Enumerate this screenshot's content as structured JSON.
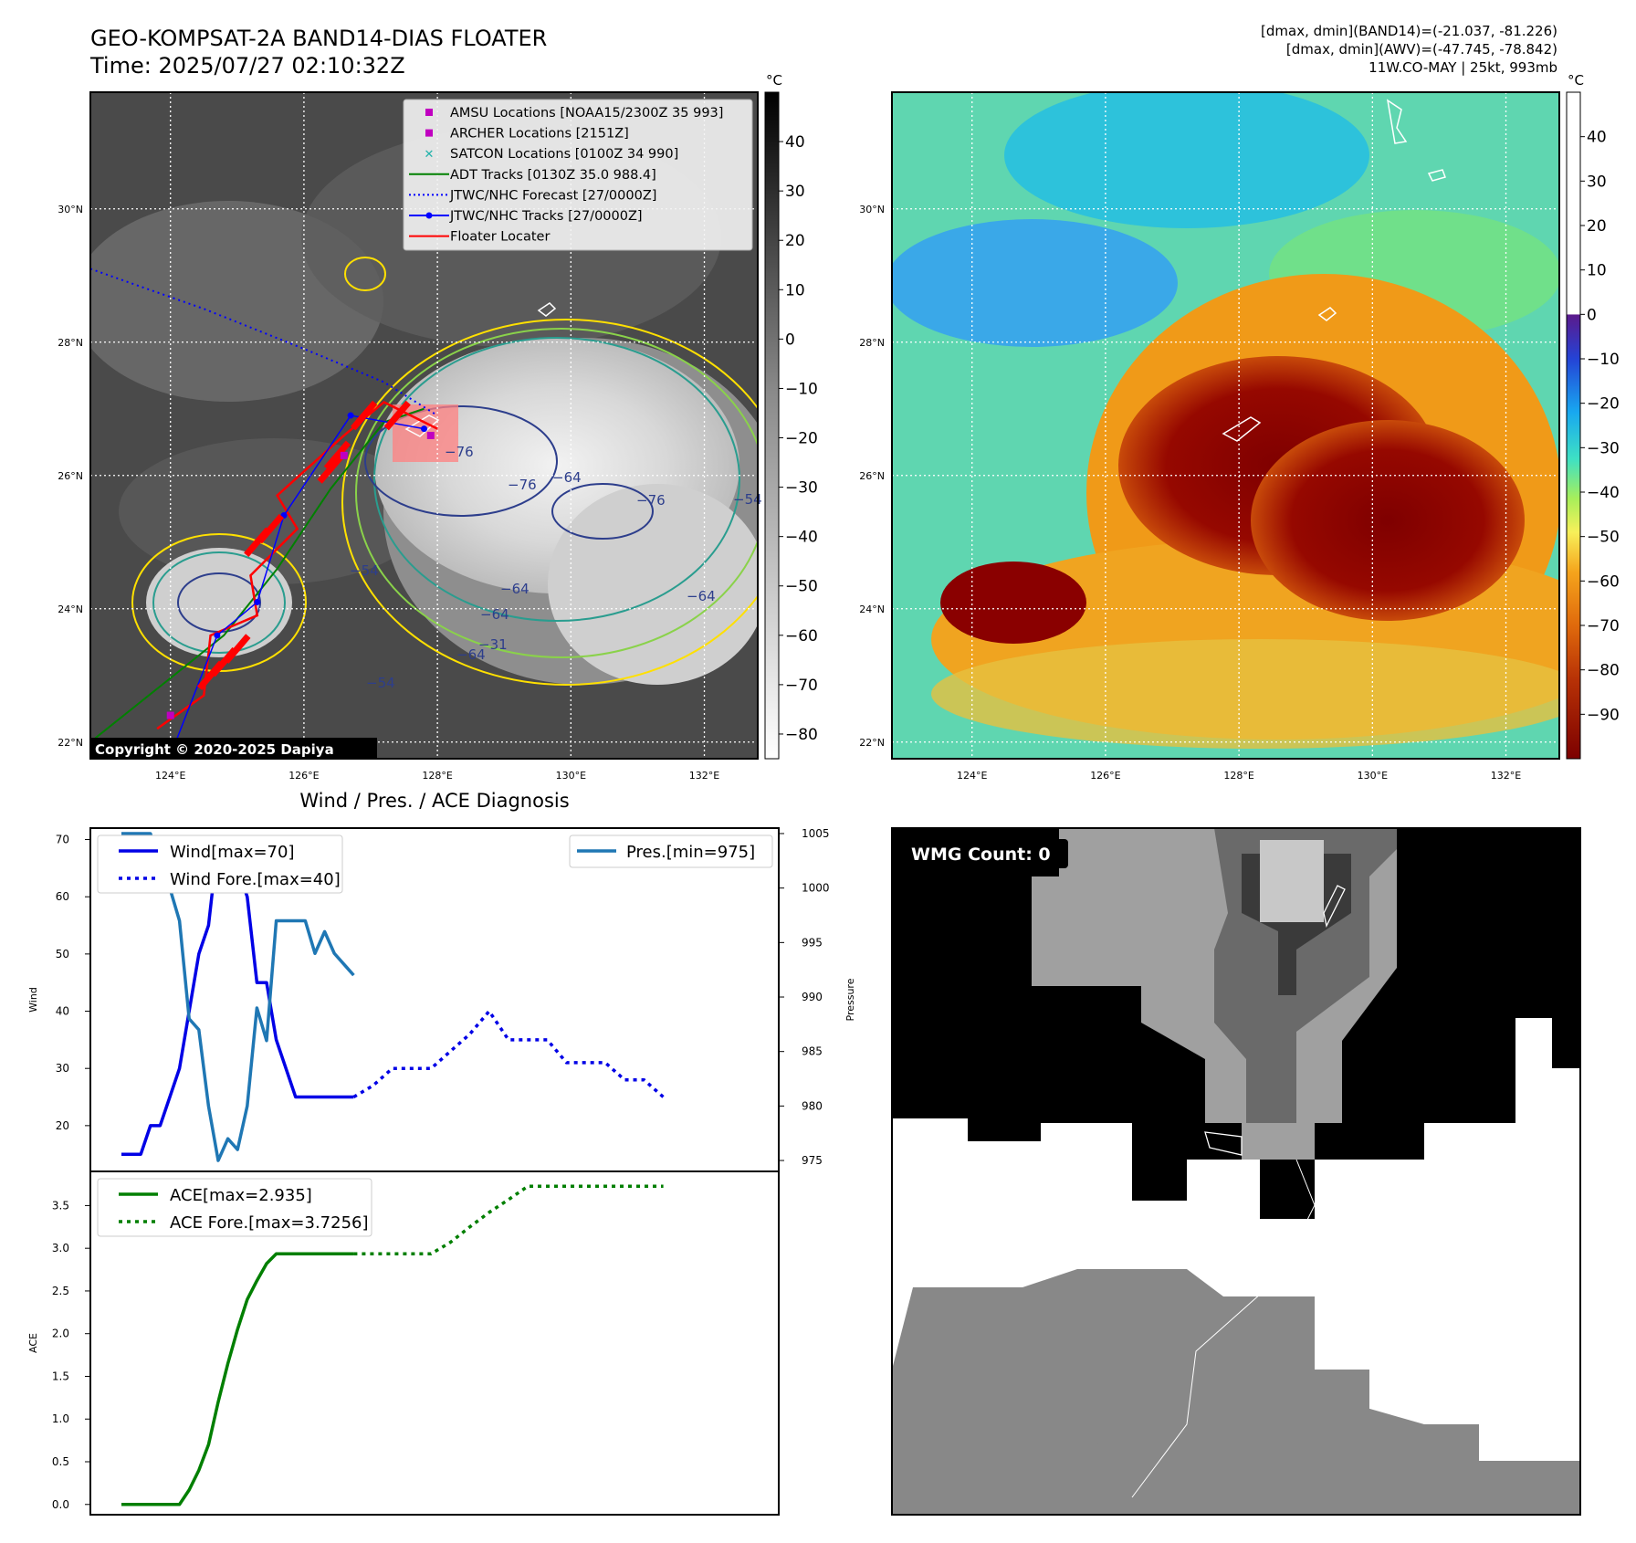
{
  "header": {
    "title_line1": "GEO-KOMPSAT-2A BAND14-DIAS FLOATER",
    "title_line2": "Time: 2025/07/27 02:10:32Z",
    "info_line1": "[dmax, dmin](BAND14)=(-21.037, -81.226)",
    "info_line2": "[dmax, dmin](AWV)=(-47.745, -78.842)",
    "info_line3": "11W.CO-MAY | 25kt, 993mb",
    "copyright": "Copyright © 2020-2025 Dapiya"
  },
  "map_axes": {
    "lat_labels": [
      "30°N",
      "28°N",
      "26°N",
      "24°N",
      "22°N"
    ],
    "lat_values": [
      30,
      28,
      26,
      24,
      22
    ],
    "lon_labels": [
      "124°E",
      "126°E",
      "128°E",
      "130°E",
      "132°E"
    ],
    "lon_values": [
      124,
      126,
      128,
      130,
      132
    ],
    "lat_range": [
      21.75,
      31.75
    ],
    "lon_range": [
      122.8,
      132.8
    ]
  },
  "ir_colorbar": {
    "unit": "°C",
    "ticks": [
      "40",
      "30",
      "20",
      "10",
      "0",
      "−10",
      "−20",
      "−30",
      "−40",
      "−50",
      "−60",
      "−70",
      "−80"
    ],
    "range": [
      50,
      -85
    ]
  },
  "wv_colorbar": {
    "unit": "°C",
    "ticks": [
      "40",
      "30",
      "20",
      "10",
      "0",
      "−10",
      "−20",
      "−30",
      "−40",
      "−50",
      "−60",
      "−70",
      "−80",
      "−90"
    ],
    "range": [
      50,
      -100
    ]
  },
  "ir_legend": [
    {
      "label": "AMSU Locations [NOAA15/2300Z 35 993]",
      "kind": "square",
      "color": "#c000c0"
    },
    {
      "label": "ARCHER Locations [2151Z]",
      "kind": "square",
      "color": "#c000c0"
    },
    {
      "label": "SATCON Locations [0100Z 34 990]",
      "kind": "x",
      "color": "#20b2aa"
    },
    {
      "label": "ADT Tracks [0130Z 35.0 988.4]",
      "kind": "line",
      "color": "#008000"
    },
    {
      "label": "JTWC/NHC Forecast [27/0000Z]",
      "kind": "dotted",
      "color": "#0000ff"
    },
    {
      "label": "JTWC/NHC Tracks [27/0000Z]",
      "kind": "line-dot",
      "color": "#0000ff"
    },
    {
      "label": "Floater Locater",
      "kind": "line",
      "color": "#ff0000"
    }
  ],
  "contour_labels": [
    "−76",
    "−76",
    "−64",
    "−76",
    "−54",
    "−64",
    "−64",
    "−64",
    "−54",
    "−31",
    "−64",
    "−54"
  ],
  "wmg": {
    "label": "WMG Count: 0"
  },
  "colors": {
    "wind": "#0000e6",
    "pressure": "#1f77b4",
    "ace": "#007f00",
    "track": "#0000ff",
    "floater": "#ff0000"
  },
  "chart_data": [
    {
      "type": "line",
      "title": "Wind / Pres. / ACE Diagnosis",
      "ylabel": "Wind",
      "y2label": "Pressure",
      "ylim": [
        12,
        72
      ],
      "y2lim": [
        974,
        1005.5
      ],
      "yticks": [
        20,
        30,
        40,
        50,
        60,
        70
      ],
      "y2ticks": [
        975,
        980,
        985,
        990,
        995,
        1000,
        1005
      ],
      "series": [
        {
          "name": "Wind[max=70]",
          "axis": "left",
          "style": "solid",
          "x": [
            0,
            1,
            2,
            3,
            4,
            5,
            6,
            7,
            8,
            9,
            10,
            11,
            12,
            13,
            14,
            15,
            16,
            17,
            18,
            19,
            20,
            21,
            22,
            23,
            24
          ],
          "values": [
            15,
            15,
            15,
            20,
            20,
            25,
            30,
            40,
            50,
            55,
            70,
            65,
            65,
            60,
            45,
            45,
            35,
            30,
            25,
            25,
            25,
            25,
            25,
            25,
            25
          ]
        },
        {
          "name": "Wind Fore.[max=40]",
          "axis": "left",
          "style": "dotted",
          "x": [
            24,
            26,
            28,
            30,
            32,
            34,
            36,
            38,
            40,
            42,
            44,
            46,
            48,
            50,
            52,
            54,
            56
          ],
          "values": [
            25,
            27,
            30,
            30,
            30,
            33,
            36,
            40,
            35,
            35,
            35,
            31,
            31,
            31,
            28,
            28,
            25
          ]
        },
        {
          "name": "Pres.[min=975]",
          "axis": "right",
          "style": "solid",
          "x": [
            0,
            1,
            2,
            3,
            4,
            5,
            6,
            7,
            8,
            9,
            10,
            11,
            12,
            13,
            14,
            15,
            16,
            17,
            18,
            19,
            20,
            21,
            22,
            23,
            24
          ],
          "values": [
            1005,
            1005,
            1005,
            1005,
            1002,
            1000,
            997,
            988,
            987,
            980,
            975,
            977,
            976,
            980,
            989,
            986,
            997,
            997,
            997,
            997,
            994,
            996,
            994,
            993,
            992
          ]
        }
      ]
    },
    {
      "type": "line",
      "ylabel": "ACE",
      "ylim": [
        -0.12,
        3.9
      ],
      "yticks": [
        "0.0",
        "0.5",
        "1.0",
        "1.5",
        "2.0",
        "2.5",
        "3.0",
        "3.5"
      ],
      "series": [
        {
          "name": "ACE[max=2.935]",
          "style": "solid",
          "x": [
            0,
            1,
            2,
            3,
            4,
            5,
            6,
            7,
            8,
            9,
            10,
            11,
            12,
            13,
            14,
            15,
            16,
            17,
            18,
            19,
            20,
            21,
            22,
            23,
            24
          ],
          "values": [
            0,
            0,
            0,
            0,
            0,
            0,
            0,
            0.17,
            0.4,
            0.7,
            1.2,
            1.65,
            2.05,
            2.4,
            2.62,
            2.82,
            2.935,
            2.935,
            2.935,
            2.935,
            2.935,
            2.935,
            2.935,
            2.935,
            2.935
          ]
        },
        {
          "name": "ACE Fore.[max=3.7256]",
          "style": "dotted",
          "x": [
            24,
            26,
            28,
            30,
            32,
            34,
            36,
            38,
            40,
            42,
            44,
            46,
            48,
            50,
            52,
            54,
            56
          ],
          "values": [
            2.935,
            2.935,
            2.935,
            2.935,
            2.935,
            3.07,
            3.25,
            3.42,
            3.57,
            3.7256,
            3.7256,
            3.7256,
            3.7256,
            3.7256,
            3.7256,
            3.7256,
            3.7256
          ]
        }
      ]
    }
  ]
}
